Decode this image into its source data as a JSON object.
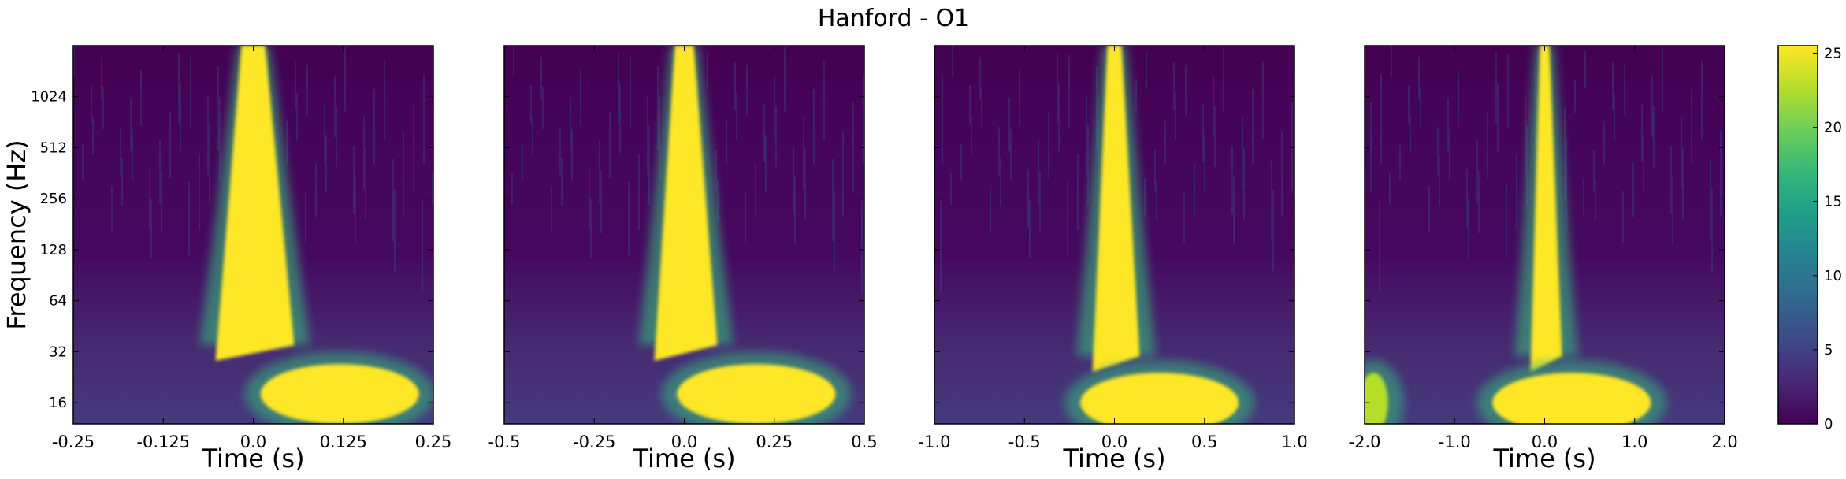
{
  "figure": {
    "title": "Hanford - O1"
  },
  "chart_data": [
    {
      "type": "heatmap",
      "title": "",
      "xlabel": "Time (s)",
      "ylabel": "Frequency (Hz)",
      "xlim": [
        -0.25,
        0.25
      ],
      "ylim": [
        12,
        2048
      ],
      "yscale": "log2",
      "xticks": [
        -0.25,
        -0.125,
        0.0,
        0.125,
        0.25
      ],
      "xtick_labels": [
        "-0.25",
        "-0.125",
        "0.0",
        "0.125",
        "0.25"
      ],
      "yticks": [
        16,
        32,
        64,
        128,
        256,
        512,
        1024
      ],
      "ytick_labels": [
        "16",
        "32",
        "64",
        "128",
        "256",
        "512",
        "1024"
      ],
      "features": [
        {
          "kind": "chirp",
          "t": 0.0,
          "f_low": 35,
          "f_high": 2048,
          "level": 25
        },
        {
          "kind": "blob",
          "t": 0.12,
          "f": 18,
          "level": 25
        }
      ]
    },
    {
      "type": "heatmap",
      "title": "",
      "xlabel": "Time (s)",
      "xlim": [
        -0.5,
        0.5
      ],
      "ylim": [
        12,
        2048
      ],
      "yscale": "log2",
      "xticks": [
        -0.5,
        -0.25,
        0.0,
        0.25,
        0.5
      ],
      "xtick_labels": [
        "-0.5",
        "-0.25",
        "0.0",
        "0.25",
        "0.5"
      ],
      "features": [
        {
          "kind": "chirp",
          "t": 0.0,
          "f_low": 35,
          "f_high": 2048,
          "level": 25
        },
        {
          "kind": "blob",
          "t": 0.2,
          "f": 18,
          "level": 25
        }
      ]
    },
    {
      "type": "heatmap",
      "title": "",
      "xlabel": "Time (s)",
      "xlim": [
        -1.0,
        1.0
      ],
      "ylim": [
        12,
        2048
      ],
      "yscale": "log2",
      "xticks": [
        -1.0,
        -0.5,
        0.0,
        0.5,
        1.0
      ],
      "xtick_labels": [
        "-1.0",
        "-0.5",
        "0.0",
        "0.5",
        "1.0"
      ],
      "features": [
        {
          "kind": "chirp",
          "t": 0.0,
          "f_low": 30,
          "f_high": 2048,
          "level": 25
        },
        {
          "kind": "blob",
          "t": 0.25,
          "f": 16,
          "level": 25
        }
      ]
    },
    {
      "type": "heatmap",
      "title": "",
      "xlabel": "Time (s)",
      "xlim": [
        -2.0,
        2.0
      ],
      "ylim": [
        12,
        2048
      ],
      "yscale": "log2",
      "xticks": [
        -2.0,
        -1.0,
        0.0,
        1.0,
        2.0
      ],
      "xtick_labels": [
        "-2.0",
        "-1.0",
        "0.0",
        "1.0",
        "2.0"
      ],
      "features": [
        {
          "kind": "chirp",
          "t": 0.0,
          "f_low": 30,
          "f_high": 2048,
          "level": 25
        },
        {
          "kind": "blob",
          "t": 0.3,
          "f": 16,
          "level": 25
        },
        {
          "kind": "blob",
          "t": -1.9,
          "f": 16,
          "level": 22
        }
      ]
    }
  ],
  "colorbar": {
    "colormap": "viridis",
    "vmin": 0,
    "vmax": 25.5,
    "ticks": [
      0,
      5,
      10,
      15,
      20,
      25
    ],
    "tick_labels": [
      "0",
      "5",
      "10",
      "15",
      "20",
      "25"
    ],
    "colors": [
      "#440154",
      "#482878",
      "#3e4989",
      "#31688e",
      "#26828e",
      "#1f9e89",
      "#35b779",
      "#6ece58",
      "#b5de2b",
      "#fde725"
    ]
  }
}
